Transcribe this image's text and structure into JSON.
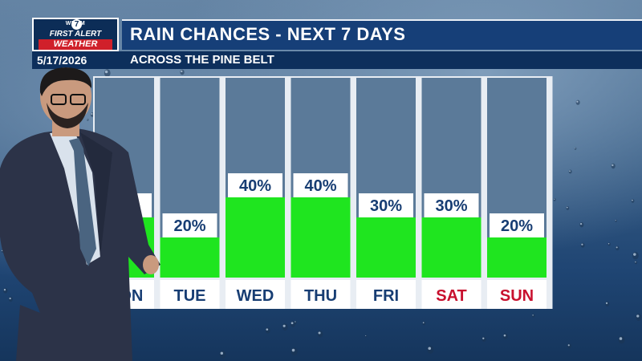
{
  "header": {
    "logo_station": "WDAM",
    "logo_channel": "7",
    "logo_line1": "FIRST ALERT",
    "logo_line2": "WEATHER",
    "title": "RAIN CHANCES - NEXT 7 DAYS",
    "date": "5/17/2026",
    "region": "ACROSS THE PINE BELT"
  },
  "colors": {
    "bar_fill": "#1fe51f",
    "column_bg": "#5b7a99",
    "label_bg": "#ffffff",
    "weekday_text": "#173d73",
    "weekend_text": "#c8102e"
  },
  "chart_data": {
    "type": "bar",
    "categories": [
      "MON",
      "TUE",
      "WED",
      "THU",
      "FRI",
      "SAT",
      "SUN"
    ],
    "values": [
      30,
      20,
      40,
      40,
      30,
      30,
      20
    ],
    "value_labels": [
      "30%",
      "20%",
      "40%",
      "40%",
      "30%",
      "30%",
      "20%"
    ],
    "weekend": [
      false,
      false,
      false,
      false,
      false,
      true,
      true
    ],
    "ylim": [
      0,
      100
    ],
    "unit": "%",
    "grid": false,
    "legend": "none"
  }
}
